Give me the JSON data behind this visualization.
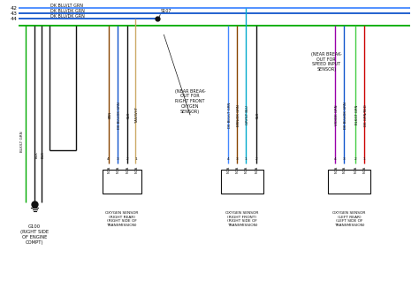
{
  "bg_color": "#ffffff",
  "wire_colors": {
    "green": "#00aa00",
    "dk_green": "#005500",
    "blue": "#4488ff",
    "dk_blue": "#1155cc",
    "cyan": "#00aacc",
    "yellow": "#ccaa00",
    "black": "#111111",
    "brown": "#884400",
    "tan": "#ccaa66",
    "violet": "#9900aa",
    "gray": "#888888",
    "red": "#cc0000",
    "teal": "#008888",
    "lt_green": "#44cc44"
  },
  "wire_labels_left": [
    "DK BLU/LT GRN",
    "DK BLU/DK GRN",
    "DK BLU/DK GRN"
  ],
  "wire_numbers_left": [
    "42",
    "43",
    "44"
  ],
  "connector_labels": [
    "OXYGEN SENSOR\n(RIGHT REAR)\n(RIGHT SIDE OF\nTRANSMISSION)",
    "OXYGEN SENSOR\n(RIGHT FRONT)\n(RIGHT SIDE OF\nTRANSMISSION)",
    "OXYGEN SENSOR\n(LEFT REAR)\n(LEFT SIDE OF\nTRANSMISSION)"
  ],
  "ground_label": "G100\n(RIGHT SIDE\nOF ENGINE\nCOMPT)",
  "breakout_labels": [
    "(NEAR BREAK-\nOUT FOR\nRIGHT FRONT\nOXYGEN\nSENSOR)",
    "(NEAR BREAK-\nOUT FOR\nSPEED INPUT\nSENSOR)"
  ],
  "connector1_wires": [
    "BRN",
    "DK BLU/DK GRN",
    "BLK",
    "TAN/WHT"
  ],
  "connector1_colors": [
    "brown",
    "dk_blue",
    "black",
    "tan"
  ],
  "connector1_pins": [
    "4",
    "3",
    "2",
    "1"
  ],
  "connector2_wires": [
    "DK BLU/LT GRN",
    "BRN/DK GRN",
    "GRY/LT BLU",
    "BLK"
  ],
  "connector2_colors": [
    "blue",
    "brown",
    "cyan",
    "black"
  ],
  "connector2_pins": [
    "4",
    "3",
    "1",
    "2"
  ],
  "connector3_wires": [
    "VIO/DK GRN",
    "DK BLU/DK GRN",
    "BLK/LT GRN",
    "DK GRN/RED"
  ],
  "connector3_colors": [
    "violet",
    "dk_blue",
    "lt_green",
    "red"
  ],
  "connector3_pins": [
    "4",
    "3",
    "2",
    "1"
  ],
  "s107_label": "S107",
  "ground_wires": [
    "BLK/LT GRN",
    "BLK",
    "BLK"
  ]
}
